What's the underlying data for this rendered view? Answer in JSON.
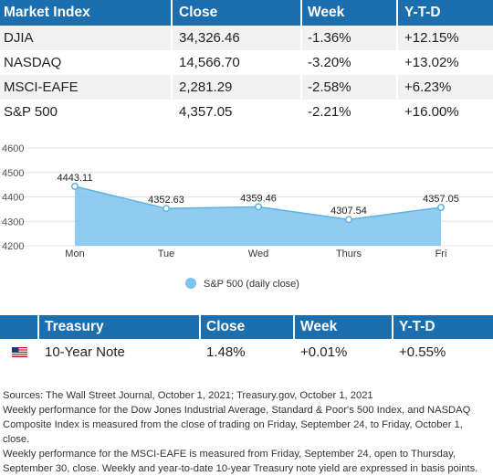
{
  "market_table": {
    "headers": [
      "Market Index",
      "Close",
      "Week",
      "Y-T-D"
    ],
    "rows": [
      {
        "index": "DJIA",
        "close": "34,326.46",
        "week": "-1.36%",
        "ytd": "+12.15%"
      },
      {
        "index": "NASDAQ",
        "close": "14,566.70",
        "week": "-3.20%",
        "ytd": "+13.02%"
      },
      {
        "index": "MSCI-EAFE",
        "close": "2,281.29",
        "week": "-2.58%",
        "ytd": "+6.23%"
      },
      {
        "index": "S&P 500",
        "close": "4,357.05",
        "week": "-2.21%",
        "ytd": "+16.00%"
      }
    ]
  },
  "chart_data": {
    "type": "area",
    "categories": [
      "Mon",
      "Tue",
      "Wed",
      "Thurs",
      "Fri"
    ],
    "series": [
      {
        "name": "S&P 500 (daily close)",
        "values": [
          4443.11,
          4352.63,
          4359.46,
          4307.54,
          4357.05
        ]
      }
    ],
    "data_labels": [
      "4443.11",
      "4352.63",
      "4359.46",
      "4307.54",
      "4357.05"
    ],
    "y_ticks": [
      4200,
      4300,
      4400,
      4500,
      4600
    ],
    "ylim": [
      4200,
      4600
    ],
    "grid": true,
    "legend": "bottom-center",
    "color": "#7bc3ec"
  },
  "treasury_table": {
    "headers": [
      "Treasury",
      "Close",
      "Week",
      "Y-T-D"
    ],
    "rows": [
      {
        "flag_icon": "us-flag-icon",
        "name": "10-Year Note",
        "close": "1.48%",
        "week": "+0.01%",
        "ytd": "+0.55%"
      }
    ]
  },
  "notes": {
    "sources": "Sources: The Wall Street Journal, October 1, 2021; Treasury.gov, October 1, 2021",
    "line2": "Weekly performance for the Dow Jones Industrial Average, Standard & Poor's 500 Index, and NASDAQ Composite Index is measured from the close of trading on Friday, September 24, to Friday, October 1, close.",
    "line3": "Weekly performance for the MSCI-EAFE is measured from Friday, September 24, open to Thursday, September 30, close. Weekly and year-to-date 10-year Treasury note yield are expressed in basis points."
  },
  "colors": {
    "header_blue": "#1b6fae",
    "area_fill": "#7bc3ec",
    "row_stripe": "#f2f2f2"
  }
}
